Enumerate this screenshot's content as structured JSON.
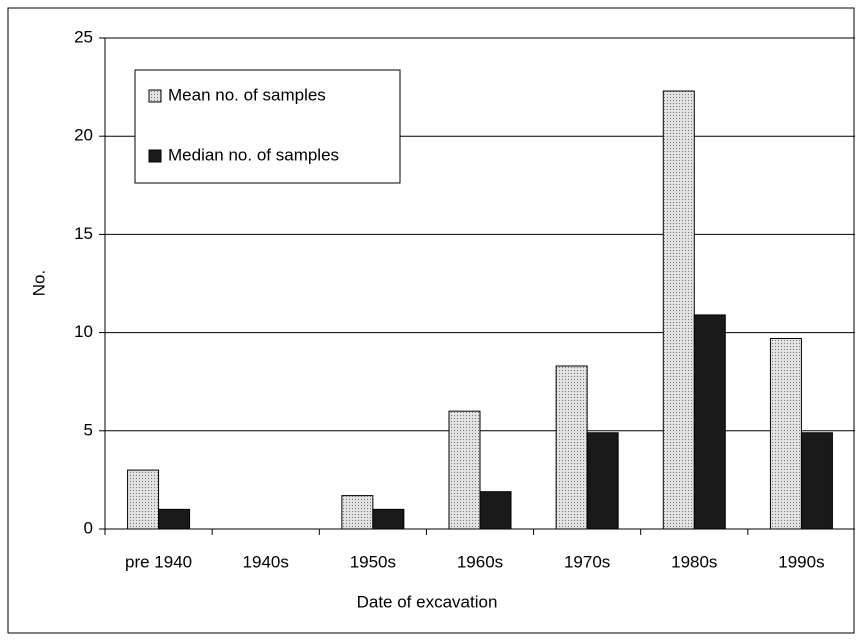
{
  "chart_data": {
    "type": "bar",
    "x_label": "Date of excavation",
    "y_label": "No.",
    "categories": [
      "pre 1940",
      "1940s",
      "1950s",
      "1960s",
      "1970s",
      "1980s",
      "1990s"
    ],
    "series": [
      {
        "name": "Mean no. of samples",
        "color": "#e2e2e2",
        "values": [
          3,
          0,
          1.7,
          6,
          8.3,
          22.3,
          9.7
        ]
      },
      {
        "name": "Median no. of samples",
        "color": "#1a1a1a",
        "values": [
          1,
          0,
          1,
          1.9,
          4.9,
          10.9,
          4.9
        ]
      }
    ],
    "ylim": [
      0,
      25
    ],
    "yticks": [
      0,
      5,
      10,
      15,
      20,
      25
    ],
    "grid": true,
    "legend": "upper left"
  }
}
